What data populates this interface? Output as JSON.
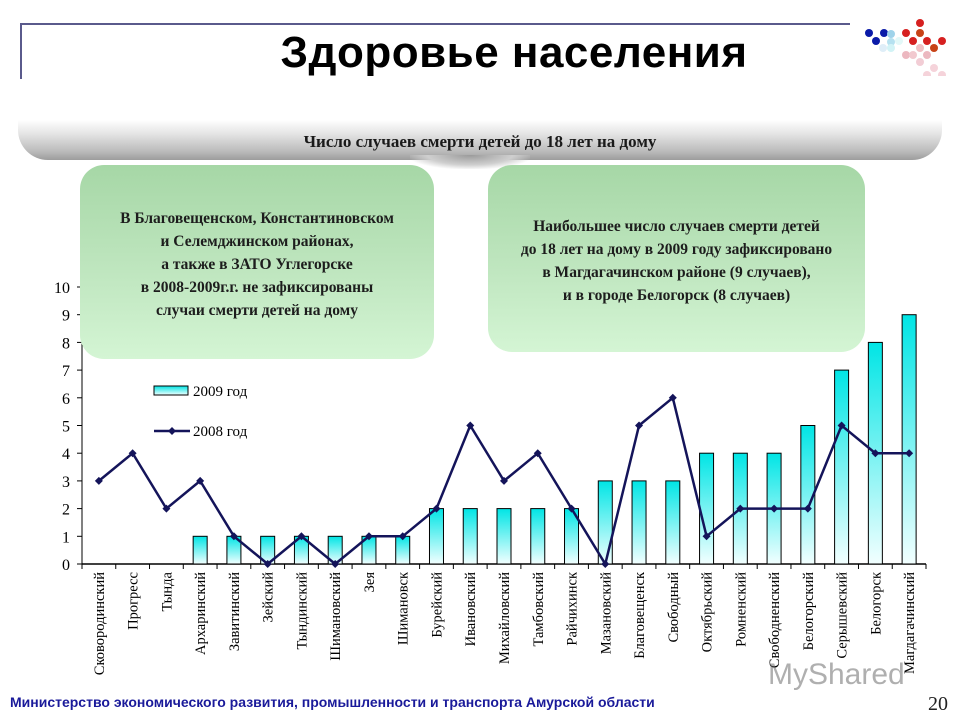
{
  "slide": {
    "title": "Здоровье населения",
    "subtitle": "Число случаев смерти детей до 18 лет  на дому",
    "notes": {
      "left": [
        "В Благовещенском, Константиновском",
        "и Селемджинском районах,",
        "а также в ЗАТО Углегорске",
        "в 2008-2009г.г. не зафиксированы",
        "случаи смерти детей на дому"
      ],
      "right": [
        "Наибольшее число случаев  смерти детей",
        "до 18 лет на дому в 2009 году зафиксировано",
        "в Магдагачинском  районе (9 случаев),",
        "и  в городе Белогорск (8 случаев)"
      ]
    },
    "footer": "Министерство экономического развития, промышленности и транспорта Амурской области",
    "page_number": "20",
    "watermark": "MyShared"
  },
  "colors": {
    "bar_top": "#00e5e5",
    "bar_bottom": "#f2ffff",
    "line": "#14145a",
    "frame": "#5a5a8c",
    "footer": "#1a1a9a"
  },
  "chart_data": {
    "type": "bar",
    "title": "Число случаев смерти детей до 18 лет  на дому",
    "xlabel": "",
    "ylabel": "",
    "ylim": [
      0,
      10
    ],
    "yticks": [
      "0",
      "1",
      "2",
      "3",
      "4",
      "5",
      "6",
      "7",
      "8",
      "9",
      "10"
    ],
    "grid": false,
    "legend_position": "upper-left-inside",
    "categories": [
      "Сковородинский",
      "Прогресс",
      "Тында",
      "Архаринский",
      "Завитинский",
      "Зейский",
      "Тындинский",
      "Шимановский",
      "Зея",
      "Шимановск",
      "Бурейский",
      "Ивановский",
      "Михайловский",
      "Тамбовский",
      "Райчихинск",
      "Мазановский",
      "Благовещенск",
      "Свободный",
      "Октябрьский",
      "Ромненский",
      "Свободненский",
      "Белогорский",
      "Серышевский",
      "Белогорск",
      "Магдагачинский"
    ],
    "series": [
      {
        "name": "2009 год",
        "type": "bar",
        "values": [
          0,
          0,
          0,
          1,
          1,
          1,
          1,
          1,
          1,
          1,
          2,
          2,
          2,
          2,
          2,
          3,
          3,
          3,
          4,
          4,
          4,
          5,
          7,
          8,
          9
        ]
      },
      {
        "name": "2008 год",
        "type": "line",
        "values": [
          3,
          4,
          2,
          3,
          1,
          0,
          1,
          0,
          1,
          1,
          2,
          5,
          3,
          4,
          2,
          0,
          5,
          6,
          1,
          2,
          2,
          2,
          5,
          4,
          4
        ]
      }
    ]
  }
}
